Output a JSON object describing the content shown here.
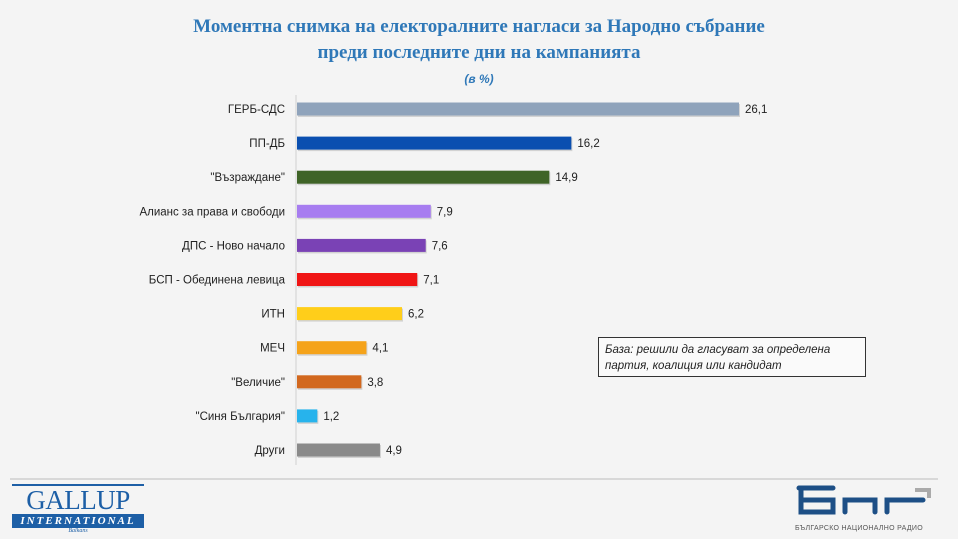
{
  "chart_data": {
    "type": "bar",
    "orientation": "horizontal",
    "title": "Моментна снимка на електоралните нагласи за Народно събрание",
    "title_line2": "преди последните дни на кампанията",
    "subtitle": "(в %)",
    "categories": [
      "ГЕРБ-СДС",
      "ПП-ДБ",
      "\"Възраждане\"",
      "Алианс за права и свободи",
      "ДПС - Ново начало",
      "БСП - Обединена левица",
      "ИТН",
      "МЕЧ",
      "\"Величие\"",
      "\"Синя България\"",
      "Други"
    ],
    "values": [
      26.1,
      16.2,
      14.9,
      7.9,
      7.6,
      7.1,
      6.2,
      4.1,
      3.8,
      1.2,
      4.9
    ],
    "labels": [
      "26,1",
      "16,2",
      "14,9",
      "7,9",
      "7,6",
      "7,1",
      "6,2",
      "4,1",
      "3,8",
      "1,2",
      "4,9"
    ],
    "colors": [
      "#8fa3bb",
      "#0a4fb0",
      "#3f6427",
      "#a77df0",
      "#7a42b5",
      "#f01515",
      "#ffce1a",
      "#f5a31a",
      "#d2681e",
      "#27b3ec",
      "#8a8a8a"
    ],
    "annotation": "База: решили да гласуват за определена партия, коалиция или кандидат",
    "grid": false
  },
  "logos": {
    "gallup": "GALLUP",
    "gallup_sub": "INTERNATIONAL",
    "gallup_region": "Balkans",
    "bnr": "БНР",
    "bnr_sub": "БЪЛГАРСКО НАЦИОНАЛНО РАДИО"
  }
}
